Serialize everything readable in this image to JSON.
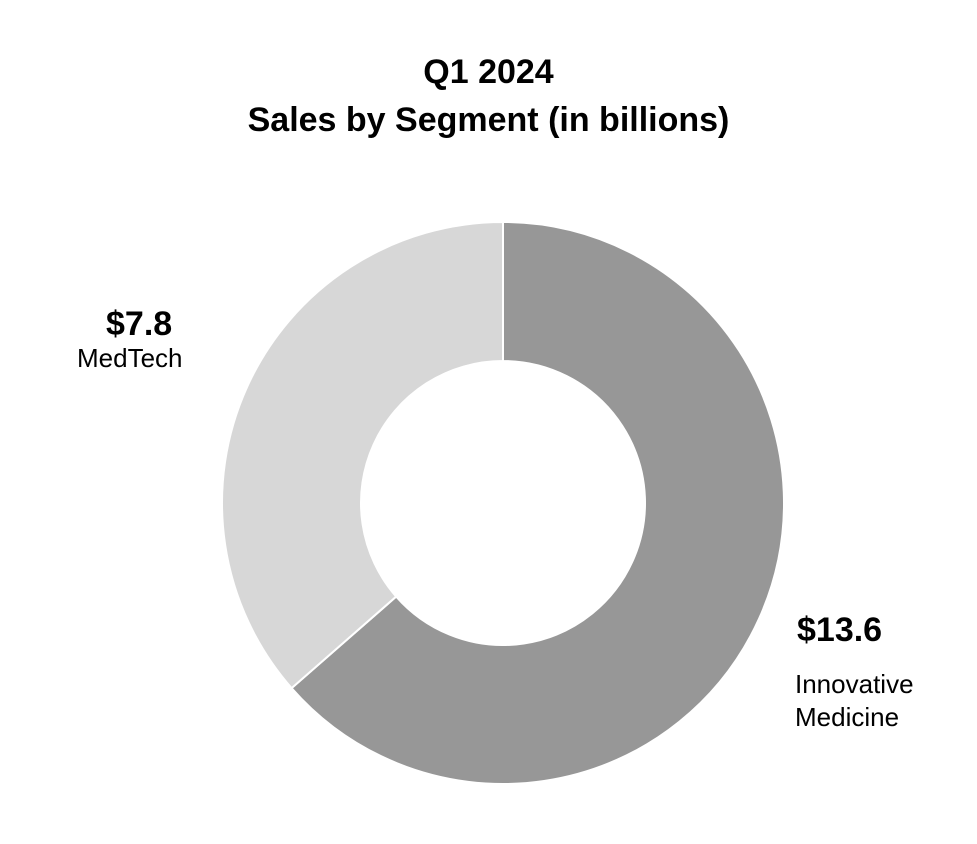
{
  "chart_data": {
    "type": "pie",
    "title": "Q1 2024",
    "subtitle": "Sales by Segment (in billions)",
    "donut": true,
    "slices": [
      {
        "name": "Innovative Medicine",
        "name_lines": [
          "Innovative",
          "Medicine"
        ],
        "value": 13.6,
        "label": "$13.6",
        "color": "#979797"
      },
      {
        "name": "MedTech",
        "name_lines": [
          "MedTech"
        ],
        "value": 7.8,
        "label": "$7.8",
        "color": "#d7d7d7"
      }
    ],
    "start_position": "12 o'clock",
    "direction": "clockwise",
    "legend": "none"
  }
}
